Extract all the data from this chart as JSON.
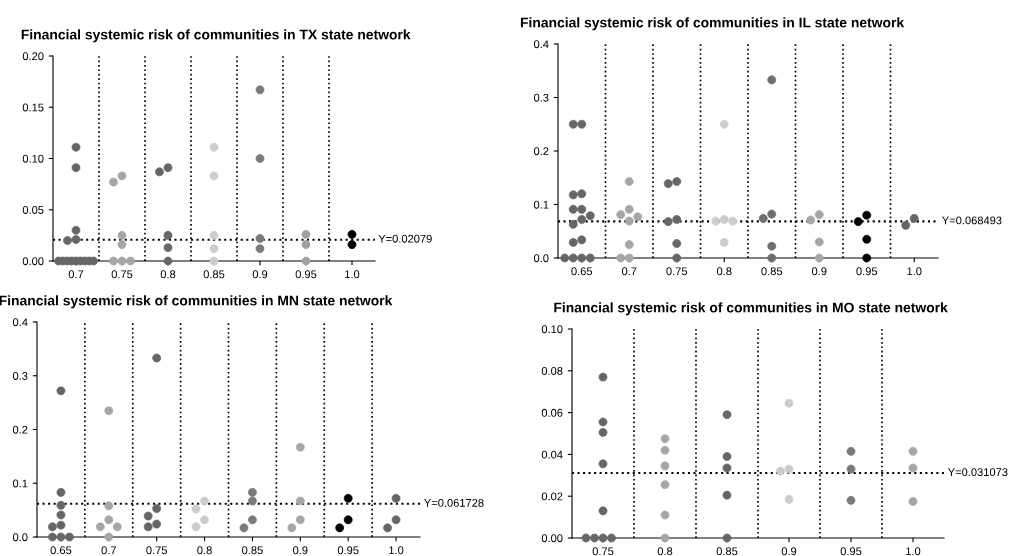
{
  "chart_data": [
    {
      "type": "scatter",
      "title": "Financial systemic risk of communities in TX state network",
      "categories": [
        "0.7",
        "0.75",
        "0.8",
        "0.85",
        "0.9",
        "0.95",
        "1.0"
      ],
      "ylim": [
        0,
        0.2
      ],
      "yticks": [
        {
          "value": 0,
          "label": "0.00"
        },
        {
          "value": 0.05,
          "label": "0.05"
        },
        {
          "value": 0.1,
          "label": "0.10"
        },
        {
          "value": 0.15,
          "label": "0.15"
        },
        {
          "value": 0.2,
          "label": "0.20"
        }
      ],
      "grid": "x",
      "marker": "circle",
      "ref_lines": [
        {
          "axis": "y",
          "value": 0.02079,
          "label": "Y=0.02079",
          "line_style": "dotted",
          "color": "#000000"
        }
      ],
      "series": [
        {
          "color": "#666666",
          "x": [
            "0.7",
            "0.7",
            "0.7",
            "0.7",
            "0.7",
            "0.7",
            "0.7",
            "0.7",
            "0.7",
            "0.7",
            "0.7",
            "0.7",
            "0.7",
            "0.7"
          ],
          "values": [
            0.111,
            0.091,
            0.03,
            0.021,
            0.02,
            0,
            0,
            0,
            0,
            0,
            0,
            0,
            0,
            0
          ]
        },
        {
          "color": "#a6a6a6",
          "x": [
            "0.75",
            "0.75",
            "0.75",
            "0.75",
            "0.75",
            "0.75",
            "0.75"
          ],
          "values": [
            0.083,
            0.077,
            0.025,
            0.016,
            0,
            0,
            0
          ]
        },
        {
          "color": "#666666",
          "x": [
            "0.8",
            "0.8",
            "0.8",
            "0.8",
            "0.8"
          ],
          "values": [
            0.091,
            0.087,
            0.025,
            0.013,
            0
          ]
        },
        {
          "color": "#cccccc",
          "x": [
            "0.85",
            "0.85",
            "0.85",
            "0.85",
            "0.85"
          ],
          "values": [
            0.111,
            0.083,
            0.025,
            0.012,
            0
          ]
        },
        {
          "color": "#7a7a7a",
          "x": [
            "0.9",
            "0.9",
            "0.9",
            "0.9"
          ],
          "values": [
            0.167,
            0.1,
            0.022,
            0.012
          ]
        },
        {
          "color": "#a0a0a0",
          "x": [
            "0.95",
            "0.95",
            "0.95"
          ],
          "values": [
            0.026,
            0.016,
            0
          ]
        },
        {
          "color": "#000000",
          "x": [
            "1.0",
            "1.0"
          ],
          "values": [
            0.026,
            0.016
          ]
        }
      ]
    },
    {
      "type": "scatter",
      "title": "Financial systemic risk of communities in IL state network",
      "categories": [
        "0.65",
        "0.7",
        "0.75",
        "0.8",
        "0.85",
        "0.9",
        "0.95",
        "1.0"
      ],
      "ylim": [
        0,
        0.4
      ],
      "yticks": [
        {
          "value": 0,
          "label": "0.0"
        },
        {
          "value": 0.1,
          "label": "0.1"
        },
        {
          "value": 0.2,
          "label": "0.2"
        },
        {
          "value": 0.3,
          "label": "0.3"
        },
        {
          "value": 0.4,
          "label": "0.4"
        }
      ],
      "grid": "x",
      "marker": "circle",
      "ref_lines": [
        {
          "axis": "y",
          "value": 0.068493,
          "label": "Y=0.068493",
          "line_style": "dotted",
          "color": "#000000"
        }
      ],
      "series": [
        {
          "color": "#666666",
          "x": [
            "0.65",
            "0.65",
            "0.65",
            "0.65",
            "0.65",
            "0.65",
            "0.65",
            "0.65",
            "0.65",
            "0.65",
            "0.65",
            "0.65",
            "0.65",
            "0.65",
            "0.65"
          ],
          "values": [
            0.25,
            0.25,
            0.12,
            0.118,
            0.091,
            0.091,
            0.079,
            0.072,
            0.063,
            0.034,
            0.029,
            0,
            0,
            0,
            0
          ]
        },
        {
          "color": "#a6a6a6",
          "x": [
            "0.7",
            "0.7",
            "0.7",
            "0.7",
            "0.7",
            "0.7",
            "0.7",
            "0.7"
          ],
          "values": [
            0.143,
            0.091,
            0.081,
            0.077,
            0.069,
            0.025,
            0,
            0
          ]
        },
        {
          "color": "#666666",
          "x": [
            "0.75",
            "0.75",
            "0.75",
            "0.75",
            "0.75",
            "0.75"
          ],
          "values": [
            0.143,
            0.139,
            0.072,
            0.068,
            0.027,
            0
          ]
        },
        {
          "color": "#cccccc",
          "x": [
            "0.8",
            "0.8",
            "0.8",
            "0.8",
            "0.8"
          ],
          "values": [
            0.25,
            0.072,
            0.069,
            0.069,
            0.029
          ]
        },
        {
          "color": "#6e6e6e",
          "x": [
            "0.85",
            "0.85",
            "0.85",
            "0.85",
            "0.85"
          ],
          "values": [
            0.333,
            0.082,
            0.074,
            0.022,
            0
          ]
        },
        {
          "color": "#a6a6a6",
          "x": [
            "0.9",
            "0.9",
            "0.9",
            "0.9"
          ],
          "values": [
            0.081,
            0.071,
            0.03,
            0
          ]
        },
        {
          "color": "#000000",
          "x": [
            "0.95",
            "0.95",
            "0.95",
            "0.95"
          ],
          "values": [
            0.08,
            0.068,
            0.035,
            0
          ]
        },
        {
          "color": "#666666",
          "x": [
            "1.0",
            "1.0"
          ],
          "values": [
            0.074,
            0.061
          ]
        }
      ]
    },
    {
      "type": "scatter",
      "title": "Financial systemic risk of communities in MN state network",
      "categories": [
        "0.65",
        "0.7",
        "0.75",
        "0.8",
        "0.85",
        "0.9",
        "0.95",
        "1.0"
      ],
      "ylim": [
        0,
        0.4
      ],
      "yticks": [
        {
          "value": 0,
          "label": "0.0"
        },
        {
          "value": 0.1,
          "label": "0.1"
        },
        {
          "value": 0.2,
          "label": "0.2"
        },
        {
          "value": 0.3,
          "label": "0.3"
        },
        {
          "value": 0.4,
          "label": "0.4"
        }
      ],
      "grid": "x",
      "marker": "circle",
      "ref_lines": [
        {
          "axis": "y",
          "value": 0.061728,
          "label": "Y=0.061728",
          "line_style": "dotted",
          "color": "#000000"
        }
      ],
      "series": [
        {
          "color": "#666666",
          "x": [
            "0.65",
            "0.65",
            "0.65",
            "0.65",
            "0.65",
            "0.65",
            "0.65",
            "0.65",
            "0.65"
          ],
          "values": [
            0.272,
            0.083,
            0.059,
            0.041,
            0.022,
            0.019,
            0,
            0,
            0
          ]
        },
        {
          "color": "#a6a6a6",
          "x": [
            "0.7",
            "0.7",
            "0.7",
            "0.7",
            "0.7",
            "0.7"
          ],
          "values": [
            0.235,
            0.058,
            0.032,
            0.019,
            0.019,
            0
          ]
        },
        {
          "color": "#666666",
          "x": [
            "0.75",
            "0.75",
            "0.75",
            "0.75",
            "0.75"
          ],
          "values": [
            0.333,
            0.053,
            0.039,
            0.024,
            0.019
          ]
        },
        {
          "color": "#cccccc",
          "x": [
            "0.8",
            "0.8",
            "0.8",
            "0.8"
          ],
          "values": [
            0.067,
            0.052,
            0.032,
            0.019
          ]
        },
        {
          "color": "#7a7a7a",
          "x": [
            "0.85",
            "0.85",
            "0.85",
            "0.85"
          ],
          "values": [
            0.083,
            0.067,
            0.032,
            0.017
          ]
        },
        {
          "color": "#a6a6a6",
          "x": [
            "0.9",
            "0.9",
            "0.9",
            "0.9"
          ],
          "values": [
            0.167,
            0.067,
            0.032,
            0.017
          ]
        },
        {
          "color": "#000000",
          "x": [
            "0.95",
            "0.95",
            "0.95"
          ],
          "values": [
            0.072,
            0.032,
            0.017
          ]
        },
        {
          "color": "#666666",
          "x": [
            "1.0",
            "1.0",
            "1.0"
          ],
          "values": [
            0.072,
            0.032,
            0.017
          ]
        }
      ]
    },
    {
      "type": "scatter",
      "title": "Financial systemic risk of communities in MO state network",
      "categories": [
        "0.75",
        "0.8",
        "0.85",
        "0.9",
        "0.95",
        "1.0"
      ],
      "ylim": [
        0,
        0.1
      ],
      "yticks": [
        {
          "value": 0,
          "label": "0.00"
        },
        {
          "value": 0.02,
          "label": "0.02"
        },
        {
          "value": 0.04,
          "label": "0.04"
        },
        {
          "value": 0.06,
          "label": "0.06"
        },
        {
          "value": 0.08,
          "label": "0.08"
        },
        {
          "value": 0.1,
          "label": "0.10"
        }
      ],
      "grid": "x",
      "marker": "circle",
      "ref_lines": [
        {
          "axis": "y",
          "value": 0.031073,
          "label": "Y=0.031073",
          "line_style": "dotted",
          "color": "#000000"
        }
      ],
      "series": [
        {
          "color": "#666666",
          "x": [
            "0.75",
            "0.75",
            "0.75",
            "0.75",
            "0.75",
            "0.75",
            "0.75",
            "0.75",
            "0.75"
          ],
          "values": [
            0.077,
            0.0555,
            0.0505,
            0.0355,
            0.013,
            0,
            0,
            0,
            0
          ]
        },
        {
          "color": "#a6a6a6",
          "x": [
            "0.8",
            "0.8",
            "0.8",
            "0.8",
            "0.8",
            "0.8"
          ],
          "values": [
            0.0475,
            0.042,
            0.0345,
            0.0255,
            0.011,
            0
          ]
        },
        {
          "color": "#666666",
          "x": [
            "0.85",
            "0.85",
            "0.85",
            "0.85",
            "0.85"
          ],
          "values": [
            0.059,
            0.039,
            0.0335,
            0.0205,
            0
          ]
        },
        {
          "color": "#cccccc",
          "x": [
            "0.9",
            "0.9",
            "0.9",
            "0.9"
          ],
          "values": [
            0.0645,
            0.033,
            0.032,
            0.0185
          ]
        },
        {
          "color": "#7a7a7a",
          "x": [
            "0.95",
            "0.95",
            "0.95"
          ],
          "values": [
            0.0415,
            0.033,
            0.018
          ]
        },
        {
          "color": "#a6a6a6",
          "x": [
            "1.0",
            "1.0",
            "1.0"
          ],
          "values": [
            0.0415,
            0.0335,
            0.0175
          ]
        }
      ]
    }
  ]
}
